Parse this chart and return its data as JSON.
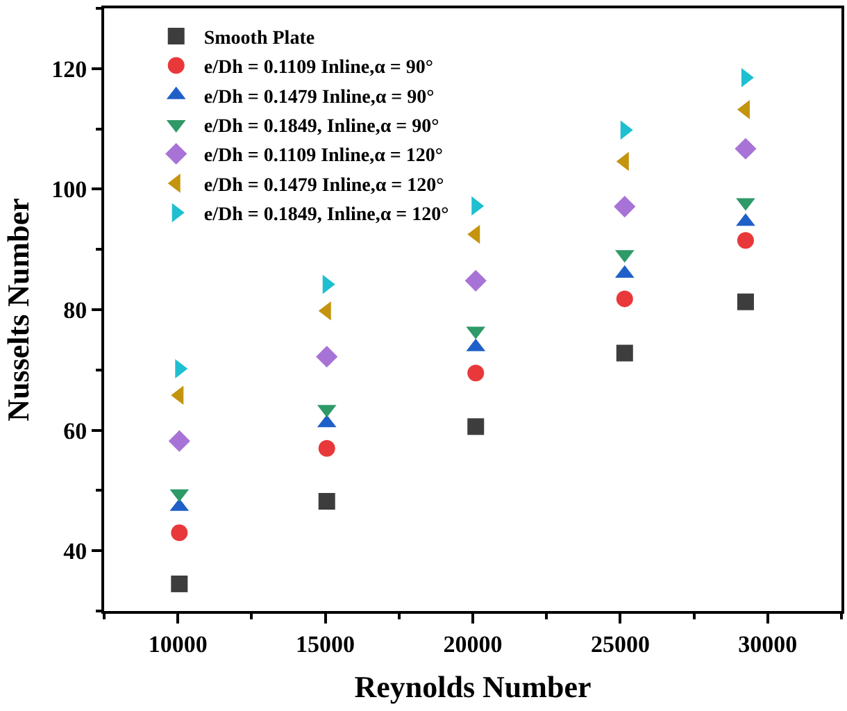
{
  "chart_data": {
    "type": "scatter",
    "xlabel": "Reynolds Number",
    "ylabel": "Nusselts Number",
    "x": [
      10050,
      15050,
      20100,
      25150,
      29250
    ],
    "xlim": [
      7500,
      32500
    ],
    "xticks": [
      10000,
      15000,
      20000,
      25000,
      30000
    ],
    "ylim": [
      30,
      130
    ],
    "yticks": [
      40,
      60,
      80,
      100,
      120
    ],
    "grid": false,
    "legend": "top left",
    "series": [
      {
        "name": "Smooth Plate",
        "color": "#3d3d3d",
        "marker": "square",
        "values": [
          34.5,
          48.2,
          60.6,
          72.8,
          81.3
        ]
      },
      {
        "name": "e/Dh = 0.1109 Inline,α = 90°",
        "color": "#e8383a",
        "marker": "circle",
        "values": [
          43,
          57,
          69.5,
          81.8,
          91.5
        ]
      },
      {
        "name": "e/Dh = 0.1479 Inline,α = 90°",
        "color": "#1f5fc8",
        "marker": "triangle-up",
        "values": [
          47.3,
          61.2,
          73.8,
          86,
          94.6
        ]
      },
      {
        "name": "e/Dh = 0.1849, Inline,α = 90°",
        "color": "#2e9a68",
        "marker": "triangle-down",
        "values": [
          49.5,
          63.5,
          76.5,
          89.2,
          97.8
        ]
      },
      {
        "name": "e/Dh = 0.1109 Inline,α = 120°",
        "color": "#a873d6",
        "marker": "diamond",
        "values": [
          58.2,
          72.2,
          84.8,
          97.1,
          106.7
        ]
      },
      {
        "name": "e/Dh = 0.1479 Inline,α = 120°",
        "color": "#c4940e",
        "marker": "triangle-left",
        "values": [
          65.8,
          79.8,
          92.5,
          104.6,
          113.2
        ]
      },
      {
        "name": "e/Dh = 0.1849, Inline,α = 120°",
        "color": "#1ebfd0",
        "marker": "triangle-right",
        "values": [
          70.2,
          84.2,
          97.2,
          109.8,
          118.5
        ]
      }
    ]
  }
}
